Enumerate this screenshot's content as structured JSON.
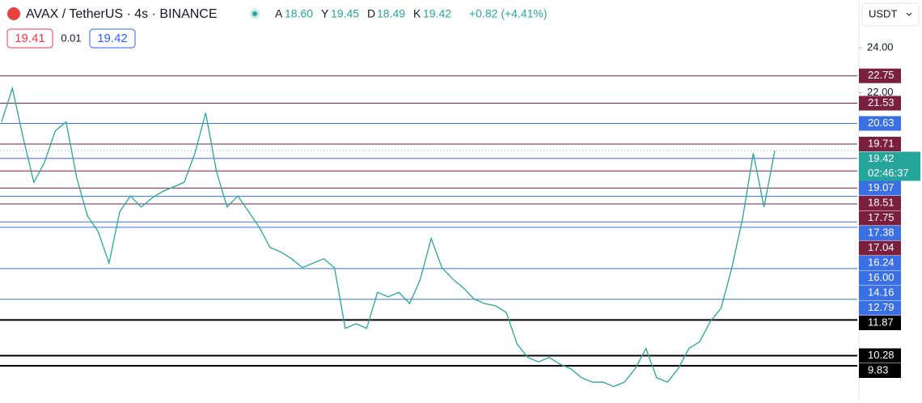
{
  "header": {
    "title": "AVAX / TetherUS · 4s · BINANCE",
    "ohlc": [
      {
        "label": "A",
        "value": "18.60"
      },
      {
        "label": "Y",
        "value": "19.45"
      },
      {
        "label": "D",
        "value": "18.49"
      },
      {
        "label": "K",
        "value": "19.42"
      }
    ],
    "change": "+0.82 (+4.41%)",
    "sell": "19.41",
    "spread": "0.01",
    "buy": "19.42",
    "currency": "USDT"
  },
  "chart_data": {
    "type": "line",
    "color": "#26a69a",
    "values": [
      20.7,
      22.2,
      20.0,
      18.0,
      18.9,
      20.3,
      20.7,
      18.2,
      16.5,
      15.8,
      14.4,
      16.7,
      17.4,
      16.9,
      17.3,
      17.6,
      17.8,
      18.0,
      19.3,
      21.1,
      18.5,
      16.9,
      17.4,
      16.7,
      16.0,
      15.1,
      14.9,
      14.6,
      14.2,
      14.4,
      14.6,
      14.2,
      11.5,
      11.7,
      11.5,
      13.1,
      12.9,
      13.1,
      12.6,
      13.7,
      15.5,
      14.2,
      13.7,
      13.3,
      12.8,
      12.6,
      12.5,
      12.2,
      10.8,
      10.2,
      10.0,
      10.2,
      9.9,
      9.7,
      9.3,
      9.1,
      9.1,
      8.9,
      9.1,
      9.7,
      10.6,
      9.3,
      9.1,
      9.7,
      10.6,
      10.9,
      11.8,
      12.4,
      14.2,
      16.4,
      19.3,
      16.9,
      19.42
    ],
    "ylim": [
      8.35,
      26.13
    ],
    "yticks": [
      {
        "value": 24,
        "label": "24.00"
      },
      {
        "value": 22,
        "label": "22.00"
      }
    ],
    "current": {
      "value": 19.42,
      "label": "19.42",
      "countdown": "02:46:37",
      "color": "#26a69a"
    },
    "levels": [
      {
        "value": 22.75,
        "label": "22.75",
        "color": "#7b1f3f"
      },
      {
        "value": 21.53,
        "label": "21.53",
        "color": "#7b1f3f"
      },
      {
        "value": 20.63,
        "label": "20.63",
        "color": "#3b6fe4"
      },
      {
        "value": 19.71,
        "label": "19.71",
        "color": "#7b1f3f"
      },
      {
        "value": 19.07,
        "label": "19.07",
        "color": "#3b6fe4"
      },
      {
        "value": 18.51,
        "label": "18.51",
        "color": "#7b1f3f"
      },
      {
        "value": 17.75,
        "label": "17.75",
        "color": "#7b1f3f"
      },
      {
        "value": 17.38,
        "label": "17.38",
        "color": "#3b6fe4"
      },
      {
        "value": 17.04,
        "label": "17.04",
        "color": "#7b1f3f"
      },
      {
        "value": 16.24,
        "label": "16.24",
        "color": "#3b6fe4"
      },
      {
        "value": 16,
        "label": "16.00",
        "color": "#3b6fe4"
      },
      {
        "value": 14.16,
        "label": "14.16",
        "color": "#3b6fe4"
      },
      {
        "value": 12.79,
        "label": "12.79",
        "color": "#3b6fe4"
      },
      {
        "value": 11.87,
        "label": "11.87",
        "color": "#000000"
      },
      {
        "value": 10.28,
        "label": "10.28",
        "color": "#000000"
      },
      {
        "value": 9.83,
        "label": "9.83",
        "color": "#000000"
      }
    ]
  }
}
